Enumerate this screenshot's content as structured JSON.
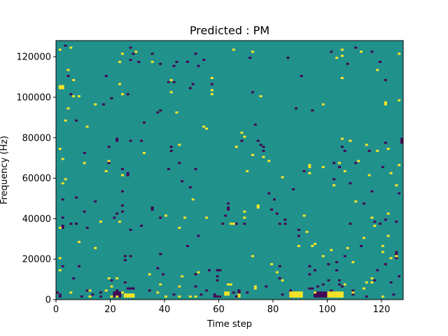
{
  "chart_data": {
    "type": "heatmap",
    "title": "Predicted : PM",
    "xlabel": "Time step",
    "ylabel": "Frequency (Hz)",
    "xlim": [
      0,
      128
    ],
    "ylim": [
      0,
      128000
    ],
    "x_ticks": [
      0,
      20,
      40,
      60,
      80,
      100,
      120
    ],
    "y_ticks": [
      0,
      20000,
      40000,
      60000,
      80000,
      100000,
      120000
    ],
    "x_tick_labels": [
      "0",
      "20",
      "40",
      "60",
      "80",
      "100",
      "120"
    ],
    "y_tick_labels": [
      "0",
      "20000",
      "40000",
      "60000",
      "80000",
      "100000",
      "120000"
    ],
    "grid": false,
    "n_rows": 128,
    "n_cols": 128,
    "colors": {
      "background": "#21918c",
      "low": "#440154",
      "high": "#fde725"
    },
    "high_cells": [
      [
        1,
        123
      ],
      [
        1,
        105
      ],
      [
        1,
        104
      ],
      [
        1,
        74
      ],
      [
        1,
        35
      ],
      [
        1,
        20
      ],
      [
        1,
        14
      ],
      [
        2,
        105
      ],
      [
        2,
        104
      ],
      [
        2,
        69
      ],
      [
        2,
        57
      ],
      [
        3,
        59
      ],
      [
        3,
        88
      ],
      [
        4,
        94
      ],
      [
        4,
        113
      ],
      [
        5,
        124
      ],
      [
        5,
        3
      ],
      [
        6,
        100
      ],
      [
        6,
        108
      ],
      [
        8,
        28
      ],
      [
        8,
        100
      ],
      [
        10,
        67
      ],
      [
        11,
        85
      ],
      [
        12,
        4
      ],
      [
        12,
        1
      ],
      [
        14,
        96
      ],
      [
        14,
        25
      ],
      [
        16,
        38
      ],
      [
        18,
        63
      ],
      [
        18,
        4
      ],
      [
        19,
        68
      ],
      [
        19,
        10
      ],
      [
        20,
        6
      ],
      [
        20,
        1
      ],
      [
        22,
        1
      ],
      [
        22,
        10
      ],
      [
        23,
        117
      ],
      [
        23,
        106
      ],
      [
        23,
        38
      ],
      [
        24,
        121
      ],
      [
        24,
        101
      ],
      [
        24,
        61
      ],
      [
        24,
        3
      ],
      [
        25,
        1
      ],
      [
        25,
        2
      ],
      [
        26,
        1
      ],
      [
        26,
        2
      ],
      [
        27,
        1
      ],
      [
        27,
        2
      ],
      [
        28,
        1
      ],
      [
        28,
        2
      ],
      [
        29,
        122
      ],
      [
        32,
        72
      ],
      [
        34,
        12
      ],
      [
        35,
        117
      ],
      [
        37,
        3
      ],
      [
        38,
        7
      ],
      [
        40,
        1
      ],
      [
        40,
        41
      ],
      [
        42,
        108
      ],
      [
        42,
        102
      ],
      [
        44,
        92
      ],
      [
        45,
        76
      ],
      [
        45,
        35
      ],
      [
        45,
        6
      ],
      [
        45,
        1
      ],
      [
        46,
        11
      ],
      [
        47,
        40
      ],
      [
        49,
        1
      ],
      [
        50,
        49
      ],
      [
        51,
        1
      ],
      [
        52,
        13
      ],
      [
        54,
        85
      ],
      [
        55,
        84
      ],
      [
        55,
        40
      ],
      [
        57,
        101
      ],
      [
        57,
        103
      ],
      [
        57,
        109
      ],
      [
        62,
        2
      ],
      [
        62,
        3
      ],
      [
        63,
        2
      ],
      [
        63,
        3
      ],
      [
        63,
        7
      ],
      [
        64,
        7
      ],
      [
        64,
        37
      ],
      [
        65,
        37
      ],
      [
        65,
        123
      ],
      [
        66,
        75
      ],
      [
        67,
        2
      ],
      [
        67,
        1
      ],
      [
        68,
        82
      ],
      [
        69,
        80
      ],
      [
        69,
        43
      ],
      [
        69,
        40
      ],
      [
        70,
        63
      ],
      [
        72,
        122
      ],
      [
        72,
        71
      ],
      [
        72,
        21
      ],
      [
        73,
        6
      ],
      [
        73,
        5
      ],
      [
        74,
        45
      ],
      [
        74,
        46
      ],
      [
        75,
        100
      ],
      [
        76,
        70
      ],
      [
        78,
        68
      ],
      [
        79,
        17
      ],
      [
        81,
        13
      ],
      [
        83,
        9
      ],
      [
        83,
        60
      ],
      [
        86,
        1
      ],
      [
        86,
        2
      ],
      [
        86,
        3
      ],
      [
        87,
        1
      ],
      [
        87,
        2
      ],
      [
        87,
        3
      ],
      [
        88,
        1
      ],
      [
        88,
        2
      ],
      [
        88,
        3
      ],
      [
        89,
        1
      ],
      [
        89,
        2
      ],
      [
        89,
        3
      ],
      [
        89,
        26
      ],
      [
        90,
        1
      ],
      [
        90,
        2
      ],
      [
        90,
        3
      ],
      [
        91,
        41
      ],
      [
        92,
        33
      ],
      [
        93,
        66
      ],
      [
        93,
        62
      ],
      [
        93,
        65
      ],
      [
        94,
        26
      ],
      [
        95,
        3
      ],
      [
        95,
        27
      ],
      [
        98,
        21
      ],
      [
        98,
        65
      ],
      [
        98,
        96
      ],
      [
        100,
        1
      ],
      [
        100,
        2
      ],
      [
        100,
        3
      ],
      [
        101,
        1
      ],
      [
        101,
        2
      ],
      [
        101,
        3
      ],
      [
        101,
        24
      ],
      [
        102,
        1
      ],
      [
        102,
        2
      ],
      [
        102,
        3
      ],
      [
        102,
        56
      ],
      [
        103,
        1
      ],
      [
        103,
        2
      ],
      [
        103,
        3
      ],
      [
        103,
        119
      ],
      [
        104,
        1
      ],
      [
        104,
        2
      ],
      [
        104,
        3
      ],
      [
        104,
        67
      ],
      [
        105,
        1
      ],
      [
        105,
        2
      ],
      [
        105,
        3
      ],
      [
        105,
        123
      ],
      [
        105,
        120
      ],
      [
        105,
        79
      ],
      [
        105,
        109
      ],
      [
        106,
        7
      ],
      [
        106,
        63
      ],
      [
        107,
        25
      ],
      [
        108,
        78
      ],
      [
        109,
        3
      ],
      [
        109,
        18
      ],
      [
        110,
        48
      ],
      [
        111,
        68
      ],
      [
        112,
        122
      ],
      [
        113,
        5
      ],
      [
        113,
        30
      ],
      [
        114,
        76
      ],
      [
        114,
        8
      ],
      [
        115,
        61
      ],
      [
        116,
        8
      ],
      [
        116,
        10
      ],
      [
        116,
        40
      ],
      [
        117,
        36
      ],
      [
        118,
        113
      ],
      [
        118,
        73
      ],
      [
        120,
        26
      ],
      [
        120,
        1
      ],
      [
        120,
        23
      ],
      [
        121,
        97
      ],
      [
        121,
        96
      ],
      [
        122,
        31
      ],
      [
        122,
        74
      ],
      [
        122,
        42
      ],
      [
        123,
        62
      ],
      [
        123,
        20
      ],
      [
        125,
        21
      ],
      [
        125,
        56
      ],
      [
        126,
        98
      ],
      [
        126,
        66
      ],
      [
        126,
        121
      ]
    ],
    "low_cells": [
      [
        0,
        3
      ],
      [
        1,
        2
      ],
      [
        1,
        1
      ],
      [
        2,
        49
      ],
      [
        2,
        40
      ],
      [
        2,
        36
      ],
      [
        2,
        35
      ],
      [
        2,
        16
      ],
      [
        3,
        125
      ],
      [
        4,
        110
      ],
      [
        5,
        37
      ],
      [
        5,
        101
      ],
      [
        6,
        10
      ],
      [
        7,
        50
      ],
      [
        7,
        37
      ],
      [
        7,
        88
      ],
      [
        8,
        16
      ],
      [
        9,
        1
      ],
      [
        10,
        43
      ],
      [
        10,
        72
      ],
      [
        11,
        35
      ],
      [
        11,
        4
      ],
      [
        12,
        1
      ],
      [
        13,
        2
      ],
      [
        14,
        48
      ],
      [
        16,
        1
      ],
      [
        16,
        3
      ],
      [
        17,
        96
      ],
      [
        18,
        110
      ],
      [
        19,
        75
      ],
      [
        19,
        67
      ],
      [
        20,
        99
      ],
      [
        20,
        9
      ],
      [
        21,
        40
      ],
      [
        21,
        1
      ],
      [
        21,
        2
      ],
      [
        21,
        3
      ],
      [
        22,
        42
      ],
      [
        22,
        79
      ],
      [
        22,
        78
      ],
      [
        22,
        4
      ],
      [
        22,
        3
      ],
      [
        22,
        2
      ],
      [
        23,
        1
      ],
      [
        23,
        2
      ],
      [
        23,
        3
      ],
      [
        24,
        64
      ],
      [
        24,
        53
      ],
      [
        24,
        46
      ],
      [
        24,
        43
      ],
      [
        25,
        21
      ],
      [
        25,
        19
      ],
      [
        25,
        8
      ],
      [
        26,
        5
      ],
      [
        26,
        101
      ],
      [
        26,
        62
      ],
      [
        26,
        61
      ],
      [
        27,
        78
      ],
      [
        27,
        124
      ],
      [
        27,
        118
      ],
      [
        27,
        34
      ],
      [
        27,
        21
      ],
      [
        27,
        5
      ],
      [
        28,
        5
      ],
      [
        28,
        121
      ],
      [
        28,
        5
      ],
      [
        30,
        117
      ],
      [
        31,
        36
      ],
      [
        31,
        78
      ],
      [
        32,
        87
      ],
      [
        34,
        4
      ],
      [
        35,
        121
      ],
      [
        35,
        45
      ],
      [
        35,
        44
      ],
      [
        37,
        92
      ],
      [
        37,
        15
      ],
      [
        38,
        93
      ],
      [
        38,
        116
      ],
      [
        38,
        40
      ],
      [
        38,
        22
      ],
      [
        39,
        12
      ],
      [
        41,
        107
      ],
      [
        41,
        64
      ],
      [
        42,
        73
      ],
      [
        42,
        75
      ],
      [
        43,
        115
      ],
      [
        43,
        107
      ],
      [
        43,
        2
      ],
      [
        44,
        117
      ],
      [
        45,
        67
      ],
      [
        45,
        6
      ],
      [
        46,
        58
      ],
      [
        48,
        26
      ],
      [
        48,
        117
      ],
      [
        49,
        104
      ],
      [
        49,
        55
      ],
      [
        50,
        106
      ],
      [
        51,
        121
      ],
      [
        51,
        64
      ],
      [
        51,
        6
      ],
      [
        51,
        12
      ],
      [
        52,
        115
      ],
      [
        52,
        31
      ],
      [
        53,
        2
      ],
      [
        54,
        118
      ],
      [
        55,
        4
      ],
      [
        56,
        14
      ],
      [
        57,
        106
      ],
      [
        58,
        2
      ],
      [
        58,
        1
      ],
      [
        59,
        1
      ],
      [
        59,
        9
      ],
      [
        59,
        11
      ],
      [
        59,
        14
      ],
      [
        60,
        1
      ],
      [
        60,
        14
      ],
      [
        61,
        37
      ],
      [
        62,
        41
      ],
      [
        63,
        45
      ],
      [
        63,
        44
      ],
      [
        63,
        47
      ],
      [
        65,
        3
      ],
      [
        66,
        37
      ],
      [
        66,
        1
      ],
      [
        67,
        4
      ],
      [
        67,
        3
      ],
      [
        68,
        78
      ],
      [
        69,
        37
      ],
      [
        70,
        3
      ],
      [
        71,
        119
      ],
      [
        72,
        102
      ],
      [
        73,
        86
      ],
      [
        74,
        78
      ],
      [
        75,
        76
      ],
      [
        76,
        75
      ],
      [
        76,
        73
      ],
      [
        77,
        6
      ],
      [
        78,
        52
      ],
      [
        79,
        44
      ],
      [
        80,
        49
      ],
      [
        81,
        42
      ],
      [
        82,
        37
      ],
      [
        82,
        16
      ],
      [
        82,
        10
      ],
      [
        83,
        2
      ],
      [
        84,
        37
      ],
      [
        84,
        39
      ],
      [
        85,
        119
      ],
      [
        86,
        1
      ],
      [
        86,
        2
      ],
      [
        86,
        3
      ],
      [
        86,
        4
      ],
      [
        87,
        54
      ],
      [
        88,
        94
      ],
      [
        89,
        34
      ],
      [
        89,
        31
      ],
      [
        90,
        110
      ],
      [
        91,
        63
      ],
      [
        93,
        5
      ],
      [
        93,
        12
      ],
      [
        93,
        16
      ],
      [
        94,
        5
      ],
      [
        94,
        93
      ],
      [
        95,
        14
      ],
      [
        95,
        1
      ],
      [
        95,
        2
      ],
      [
        95,
        3
      ],
      [
        96,
        6
      ],
      [
        96,
        2
      ],
      [
        96,
        3
      ],
      [
        96,
        1
      ],
      [
        97,
        2
      ],
      [
        97,
        3
      ],
      [
        97,
        1
      ],
      [
        98,
        2
      ],
      [
        98,
        3
      ],
      [
        98,
        1
      ],
      [
        98,
        7
      ],
      [
        99,
        2
      ],
      [
        99,
        3
      ],
      [
        99,
        1
      ],
      [
        100,
        9
      ],
      [
        100,
        17
      ],
      [
        101,
        122
      ],
      [
        101,
        4
      ],
      [
        101,
        3
      ],
      [
        102,
        67
      ],
      [
        102,
        59
      ],
      [
        103,
        14
      ],
      [
        103,
        18
      ],
      [
        104,
        65
      ],
      [
        104,
        9
      ],
      [
        104,
        7
      ],
      [
        105,
        6
      ],
      [
        105,
        75
      ],
      [
        106,
        73
      ],
      [
        106,
        21
      ],
      [
        107,
        116
      ],
      [
        108,
        57
      ],
      [
        108,
        37
      ],
      [
        109,
        2
      ],
      [
        109,
        4
      ],
      [
        110,
        124
      ],
      [
        110,
        67
      ],
      [
        112,
        26
      ],
      [
        113,
        47
      ],
      [
        114,
        1
      ],
      [
        115,
        73
      ],
      [
        116,
        122
      ],
      [
        116,
        53
      ],
      [
        117,
        38
      ],
      [
        117,
        9
      ],
      [
        118,
        14
      ],
      [
        119,
        117
      ],
      [
        119,
        37
      ],
      [
        120,
        65
      ],
      [
        121,
        108
      ],
      [
        121,
        77
      ],
      [
        121,
        39
      ],
      [
        121,
        17
      ],
      [
        123,
        8
      ],
      [
        124,
        2
      ],
      [
        125,
        23
      ],
      [
        125,
        22
      ],
      [
        125,
        20
      ],
      [
        125,
        38
      ],
      [
        126,
        11
      ],
      [
        126,
        52
      ],
      [
        127,
        79
      ],
      [
        127,
        78
      ],
      [
        127,
        77
      ]
    ]
  }
}
